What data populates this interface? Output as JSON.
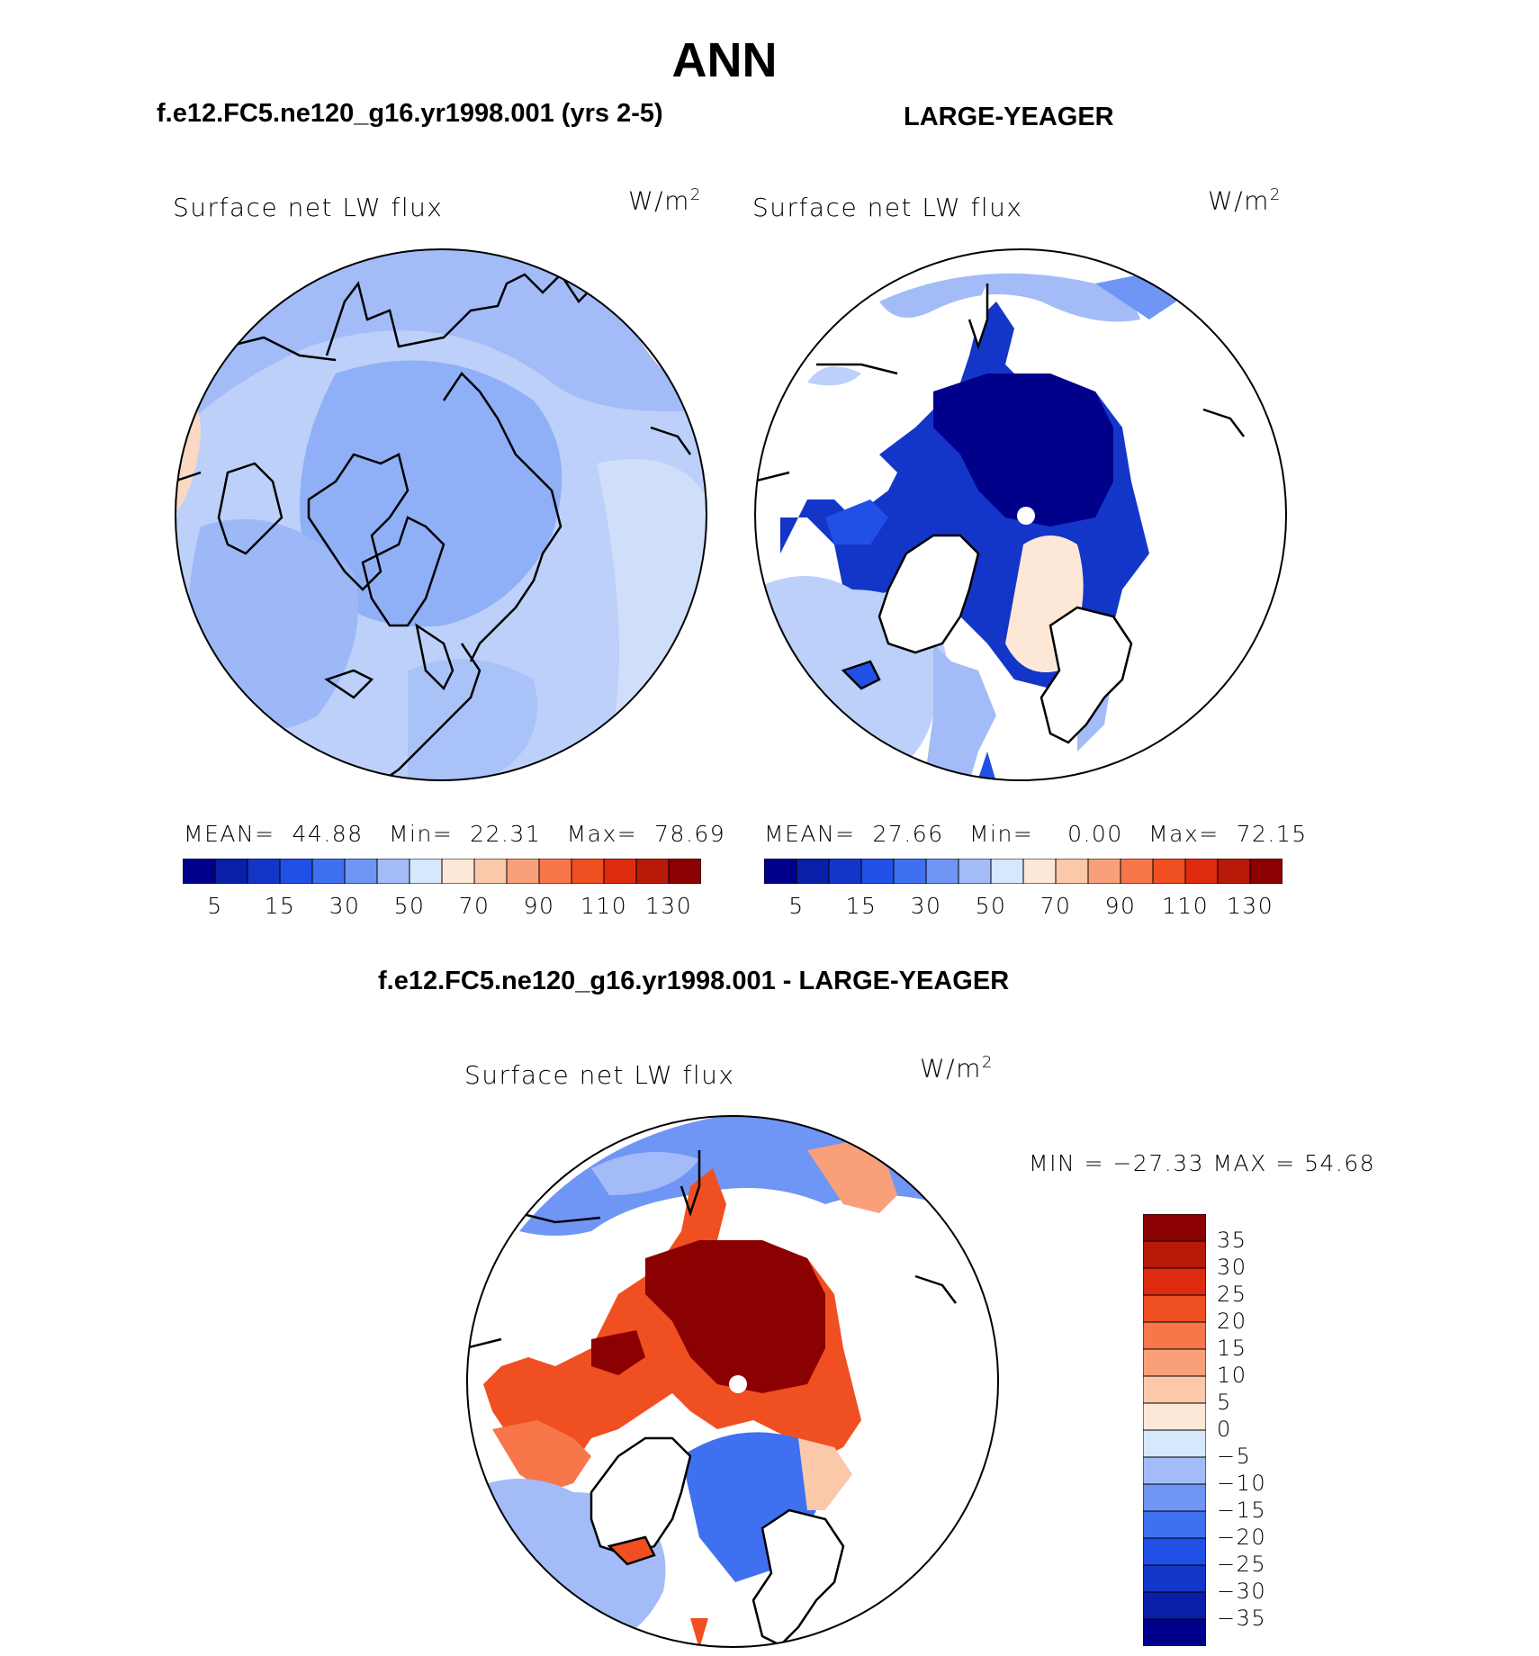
{
  "page_title": "ANN",
  "top_left": {
    "case_title": "f.e12.FC5.ne120_g16.yr1998.001 (yrs 2-5)",
    "field_label": "Surface net LW flux",
    "units_base": "W/m",
    "units_exp": "2",
    "stats": {
      "mean_label": "MEAN=",
      "mean": "44.88",
      "min_label": "Min=",
      "min": "22.31",
      "max_label": "Max=",
      "max": "78.69"
    }
  },
  "top_right": {
    "case_title": "LARGE-YEAGER",
    "field_label": "Surface net LW flux",
    "units_base": "W/m",
    "units_exp": "2",
    "stats": {
      "mean_label": "MEAN=",
      "mean": "27.66",
      "min_label": "Min=",
      "min": "0.00",
      "max_label": "Max=",
      "max": "72.15"
    }
  },
  "diff": {
    "case_title": "f.e12.FC5.ne120_g16.yr1998.001 - LARGE-YEAGER",
    "field_label": "Surface net LW flux",
    "units_base": "W/m",
    "units_exp": "2",
    "minmax": "MIN = −27.33 MAX =   54.68"
  },
  "colorbar_top": {
    "colors": [
      "#00008b",
      "#0a1fa8",
      "#1436c8",
      "#2150e6",
      "#3f70f0",
      "#6f95f5",
      "#a3bcf8",
      "#d6e8fb",
      "#fde8d8",
      "#fbc8aa",
      "#f9a07a",
      "#f7774a",
      "#f04f22",
      "#de2b10",
      "#b81a0a",
      "#8b0000"
    ],
    "tick_labels": [
      "5",
      "15",
      "30",
      "50",
      "70",
      "90",
      "110",
      "130"
    ]
  },
  "colorbar_diff": {
    "colors": [
      "#8b0000",
      "#b81a0a",
      "#de2b10",
      "#f04f22",
      "#f7774a",
      "#f9a07a",
      "#fbc8aa",
      "#fde8d8",
      "#d6e8fb",
      "#a3bcf8",
      "#6f95f5",
      "#3f70f0",
      "#2150e6",
      "#1436c8",
      "#0a1fa8",
      "#00008b"
    ],
    "tick_labels": [
      "35",
      "30",
      "25",
      "20",
      "15",
      "10",
      "5",
      "0",
      "−5",
      "−10",
      "−15",
      "−20",
      "−25",
      "−30",
      "−35"
    ]
  }
}
